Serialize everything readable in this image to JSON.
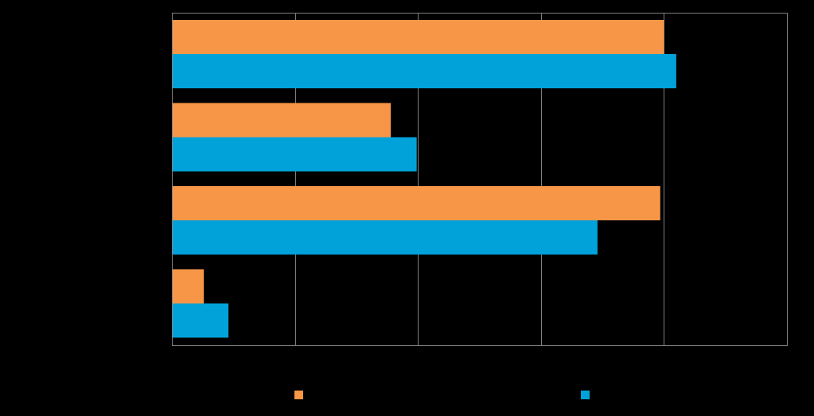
{
  "chart_data": {
    "type": "bar",
    "orientation": "horizontal",
    "categories": [
      "",
      "",
      "",
      ""
    ],
    "x": [
      0,
      1,
      2,
      3
    ],
    "series": [
      {
        "values": [
          4.0,
          1.78,
          3.97,
          0.26
        ],
        "color": "#f79646"
      },
      {
        "values": [
          4.1,
          1.99,
          3.46,
          0.46
        ],
        "color": "#00a2d9"
      }
    ],
    "xlim": [
      0,
      5
    ],
    "x_ticks": [
      0,
      1,
      2,
      3,
      4,
      5
    ],
    "grid": true,
    "legend": "bottom",
    "title": "",
    "xlabel": "",
    "ylabel": "",
    "background": "#000000",
    "axis_color": "#7f7f7f"
  }
}
